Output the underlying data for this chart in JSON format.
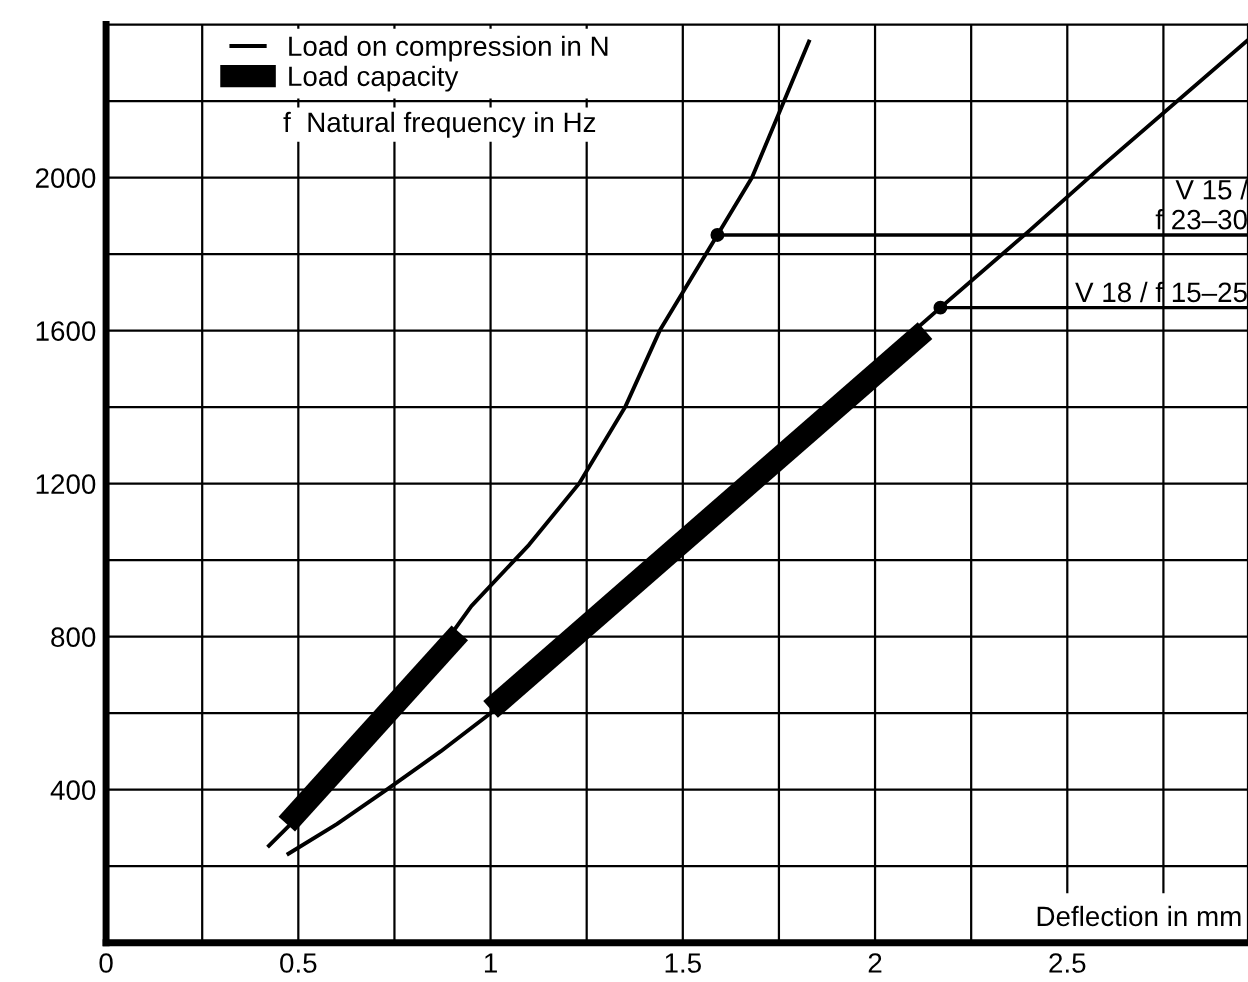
{
  "chart_data": {
    "type": "line",
    "xlabel": "Deflection in mm",
    "xlim": [
      0,
      2.97
    ],
    "ylim": [
      0,
      2400
    ],
    "xticks": [
      0,
      {
        "value": 0.25,
        "label": null
      },
      0.5,
      {
        "value": 0.75,
        "label": null
      },
      1,
      {
        "value": 1.25,
        "label": null
      },
      1.5,
      {
        "value": 1.75,
        "label": null
      },
      2,
      {
        "value": 2.25,
        "label": null
      },
      2.5,
      {
        "value": 2.75,
        "label": null
      }
    ],
    "yticks": [
      {
        "value": 200,
        "label": null
      },
      400,
      {
        "value": 600,
        "label": null
      },
      800,
      {
        "value": 1000,
        "label": null
      },
      1200,
      {
        "value": 1400,
        "label": null
      },
      1600,
      {
        "value": 1800,
        "label": null
      },
      2000,
      {
        "value": 2200,
        "label": null
      }
    ],
    "grid": true,
    "legend": "top left",
    "marker": "none",
    "line_style": "solid",
    "series": [
      {
        "name": "Load on compression in N",
        "color": "#000000",
        "x": [
          0.42,
          0.55,
          0.7,
          0.85,
          0.95,
          1.1,
          1.23,
          1.35,
          1.44,
          1.59,
          1.68,
          1.83
        ],
        "values": [
          250,
          380,
          560,
          740,
          880,
          1040,
          1200,
          1400,
          1600,
          1850,
          2000,
          2360
        ]
      },
      {
        "color": "#000000",
        "x": [
          0.47,
          0.6,
          0.73,
          0.87,
          1.0,
          1.25,
          1.5,
          1.75,
          2.0,
          2.17,
          2.4,
          2.59,
          2.97
        ],
        "values": [
          230,
          310,
          400,
          500,
          600,
          820,
          1050,
          1280,
          1510,
          1660,
          1860,
          2030,
          2360
        ]
      },
      {
        "name": "Load capacity",
        "color": "#000000",
        "x": [
          0.47,
          0.92
        ],
        "values": [
          310,
          810
        ]
      },
      {
        "color": "#000000",
        "x": [
          1.0,
          2.13
        ],
        "values": [
          610,
          1600
        ]
      }
    ],
    "annotations": [
      "f  Natural frequency in Hz",
      {
        "text": "V 15 /\nf 23–30",
        "x": 1.59,
        "y": 1850
      },
      {
        "text": "V 18 / f 15–25",
        "x": 2.17,
        "y": 1660
      }
    ]
  }
}
